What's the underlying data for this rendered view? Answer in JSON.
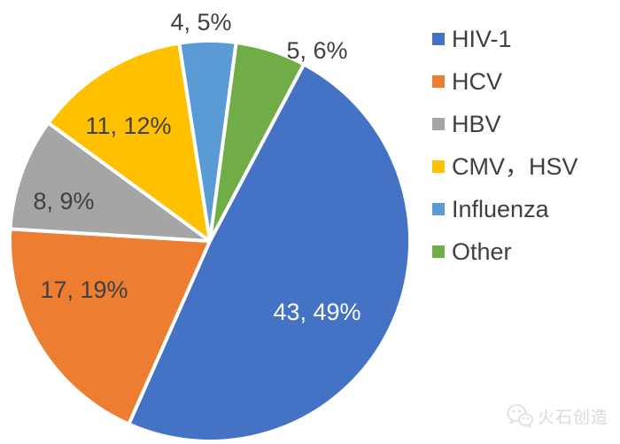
{
  "chart_data": {
    "type": "pie",
    "title": "",
    "total": 88,
    "start_angle_deg": 28,
    "clockwise": true,
    "legend_position": "right",
    "slices": [
      {
        "name": "HIV-1",
        "value": 43,
        "percent": 49,
        "label": "43, 49%",
        "color": "#4472C4",
        "label_color": "#FFFFFF"
      },
      {
        "name": "HCV",
        "value": 17,
        "percent": 19,
        "label": "17, 19%",
        "color": "#ED7D31",
        "label_color": "#404040"
      },
      {
        "name": "HBV",
        "value": 8,
        "percent": 9,
        "label": "8, 9%",
        "color": "#A5A5A5",
        "label_color": "#404040"
      },
      {
        "name": "CMV，HSV",
        "value": 11,
        "percent": 12,
        "label": "11, 12%",
        "color": "#FFC000",
        "label_color": "#404040"
      },
      {
        "name": "Influenza",
        "value": 4,
        "percent": 5,
        "label": "4, 5%",
        "color": "#5B9BD5",
        "label_color": "#404040"
      },
      {
        "name": "Other",
        "value": 5,
        "percent": 6,
        "label": "5, 6%",
        "color": "#70AD47",
        "label_color": "#404040"
      }
    ]
  },
  "watermark": {
    "text": "火石创造",
    "icon": "wechat-icon",
    "color": "#d9d9d9"
  }
}
